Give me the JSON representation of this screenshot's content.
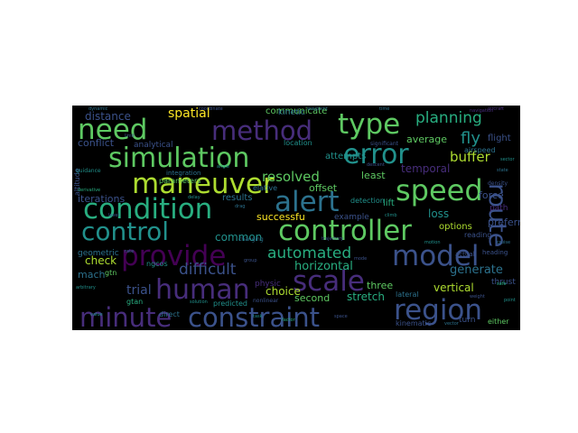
{
  "colors": {
    "canvas": "#000000",
    "page": "#ffffff",
    "palette": [
      "#440154",
      "#472d7b",
      "#3b528b",
      "#2c728e",
      "#21918c",
      "#28ae80",
      "#5ec962",
      "#addc30",
      "#fde725"
    ]
  },
  "words": [
    {
      "text": "minute",
      "color": "#472d7b"
    },
    {
      "text": "constraint",
      "color": "#3b528b"
    },
    {
      "text": "region",
      "color": "#3b528b"
    },
    {
      "text": "human",
      "color": "#472d7b"
    },
    {
      "text": "scale",
      "color": "#472d7b"
    },
    {
      "text": "provide",
      "color": "#440154"
    },
    {
      "text": "model",
      "color": "#3b528b"
    },
    {
      "text": "controller",
      "color": "#5ec962"
    },
    {
      "text": "control",
      "color": "#21918c"
    },
    {
      "text": "condition",
      "color": "#28ae80"
    },
    {
      "text": "alert",
      "color": "#2c728e"
    },
    {
      "text": "speed",
      "color": "#5ec962"
    },
    {
      "text": "maneuver",
      "color": "#addc30"
    },
    {
      "text": "simulation",
      "color": "#5ec962"
    },
    {
      "text": "error",
      "color": "#21918c"
    },
    {
      "text": "need",
      "color": "#5ec962"
    },
    {
      "text": "method",
      "color": "#472d7b"
    },
    {
      "text": "type",
      "color": "#5ec962"
    },
    {
      "text": "route",
      "color": "#3b528b"
    },
    {
      "text": "planning",
      "color": "#28ae80"
    },
    {
      "text": "fly",
      "color": "#21918c"
    },
    {
      "text": "automated",
      "color": "#28ae80"
    },
    {
      "text": "difficult",
      "color": "#3b528b"
    },
    {
      "text": "resolved",
      "color": "#5ec962"
    },
    {
      "text": "buffer",
      "color": "#addc30"
    },
    {
      "text": "spatial",
      "color": "#fde725"
    },
    {
      "text": "trial",
      "color": "#3b528b"
    },
    {
      "text": "horizontal",
      "color": "#28ae80"
    },
    {
      "text": "generate",
      "color": "#2c728e"
    },
    {
      "text": "vertical",
      "color": "#addc30"
    },
    {
      "text": "common",
      "color": "#21918c"
    },
    {
      "text": "distance",
      "color": "#3b528b"
    },
    {
      "text": "stretch",
      "color": "#28ae80"
    },
    {
      "text": "second",
      "color": "#5ec962"
    },
    {
      "text": "choice",
      "color": "#addc30"
    },
    {
      "text": "successfu",
      "color": "#fde725"
    },
    {
      "text": "check",
      "color": "#addc30"
    },
    {
      "text": "mach",
      "color": "#2c728e"
    },
    {
      "text": "temporal",
      "color": "#472d7b"
    },
    {
      "text": "average",
      "color": "#5ec962"
    },
    {
      "text": "loss",
      "color": "#21918c"
    },
    {
      "text": "offset",
      "color": "#5ec962"
    },
    {
      "text": "least",
      "color": "#5ec962"
    },
    {
      "text": "three",
      "color": "#5ec962"
    },
    {
      "text": "communicate",
      "color": "#5ec962"
    },
    {
      "text": "conflict",
      "color": "#3b528b"
    },
    {
      "text": "iterations",
      "color": "#3b528b"
    },
    {
      "text": "results",
      "color": "#2c728e"
    },
    {
      "text": "options",
      "color": "#addc30"
    },
    {
      "text": "preferred",
      "color": "#3b528b"
    },
    {
      "text": "attempts",
      "color": "#21918c"
    },
    {
      "text": "lift",
      "color": "#28ae80"
    },
    {
      "text": "example",
      "color": "#3b528b"
    },
    {
      "text": "force",
      "color": "#3b528b"
    },
    {
      "text": "flight",
      "color": "#3b528b"
    },
    {
      "text": "path",
      "color": "#472d7b"
    },
    {
      "text": "analytical",
      "color": "#3b528b"
    },
    {
      "text": "kinetic",
      "color": "#2c728e"
    },
    {
      "text": "location",
      "color": "#21918c"
    },
    {
      "text": "detection",
      "color": "#21918c"
    },
    {
      "text": "geometric",
      "color": "#2c728e"
    },
    {
      "text": "physic",
      "color": "#472d7b"
    },
    {
      "text": "turn",
      "color": "#3b528b"
    },
    {
      "text": "either",
      "color": "#5ec962"
    },
    {
      "text": "thrust",
      "color": "#3b528b"
    },
    {
      "text": "lateral",
      "color": "#2c728e"
    },
    {
      "text": "kinematic",
      "color": "#3b528b"
    },
    {
      "text": "reading",
      "color": "#3b528b"
    },
    {
      "text": "predicted",
      "color": "#21918c"
    },
    {
      "text": "parameters",
      "color": "#5ec962"
    },
    {
      "text": "integration",
      "color": "#2c728e"
    },
    {
      "text": "direct",
      "color": "#2c728e"
    },
    {
      "text": "gtan",
      "color": "#28ae80"
    },
    {
      "text": "elative",
      "color": "#2c728e"
    },
    {
      "text": "airspeed",
      "color": "#2c728e"
    },
    {
      "text": "heading",
      "color": "#3b528b"
    },
    {
      "text": "actual",
      "color": "#3b528b"
    },
    {
      "text": "altitude",
      "color": "#3b528b"
    },
    {
      "text": "density",
      "color": "#3b528b"
    },
    {
      "text": "ngcos",
      "color": "#21918c"
    },
    {
      "text": "gtn",
      "color": "#5ec962"
    },
    {
      "text": "changing",
      "color": "#2c728e"
    },
    {
      "text": "significant",
      "color": "#3b528b"
    },
    {
      "text": "nonlinear",
      "color": "#3b528b"
    },
    {
      "text": "guidance",
      "color": "#21918c"
    },
    {
      "text": "dynamic",
      "color": "#2c728e"
    },
    {
      "text": "navigation",
      "color": "#472d7b"
    },
    {
      "text": "arbitrary",
      "color": "#21918c"
    },
    {
      "text": "derivative",
      "color": "#28ae80"
    },
    {
      "text": "drag",
      "color": "#2c728e"
    },
    {
      "text": "weight",
      "color": "#3b528b"
    },
    {
      "text": "sector",
      "color": "#21918c"
    },
    {
      "text": "cruise",
      "color": "#2c728e"
    },
    {
      "text": "value",
      "color": "#21918c"
    },
    {
      "text": "group",
      "color": "#3b528b"
    },
    {
      "text": "waypoint",
      "color": "#2c728e"
    },
    {
      "text": "climb",
      "color": "#21918c"
    },
    {
      "text": "trajectory",
      "color": "#3b528b"
    },
    {
      "text": "descent",
      "color": "#3b528b"
    },
    {
      "text": "safe",
      "color": "#28ae80"
    },
    {
      "text": "task",
      "color": "#21918c"
    },
    {
      "text": "coordinate",
      "color": "#3b528b"
    },
    {
      "text": "rate",
      "color": "#2c728e"
    },
    {
      "text": "angle",
      "color": "#21918c"
    },
    {
      "text": "mode",
      "color": "#3b528b"
    },
    {
      "text": "motion",
      "color": "#21918c"
    },
    {
      "text": "factor",
      "color": "#28ae80"
    },
    {
      "text": "solution",
      "color": "#21918c"
    },
    {
      "text": "vector",
      "color": "#2c728e"
    },
    {
      "text": "point",
      "color": "#21918c"
    },
    {
      "text": "limit",
      "color": "#3b528b"
    },
    {
      "text": "time",
      "color": "#2c728e"
    },
    {
      "text": "delay",
      "color": "#21918c"
    },
    {
      "text": "level",
      "color": "#3b528b"
    },
    {
      "text": "state",
      "color": "#2c728e"
    },
    {
      "text": "space",
      "color": "#3b528b"
    },
    {
      "text": "aircraft",
      "color": "#472d7b"
    }
  ]
}
